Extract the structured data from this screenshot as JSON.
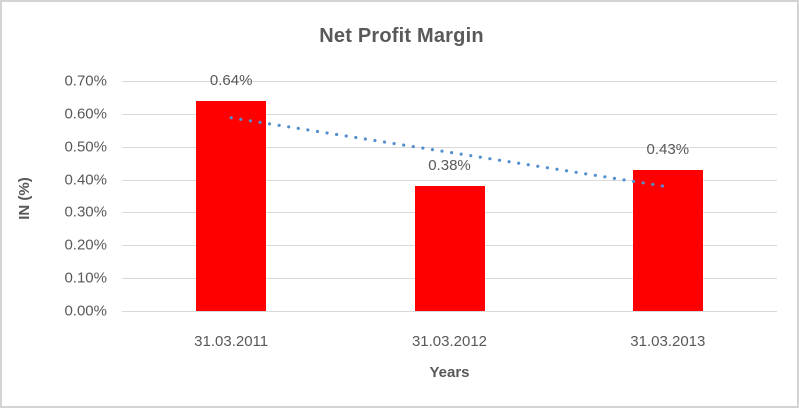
{
  "chart_data": {
    "type": "bar",
    "title": "Net Profit Margin",
    "xlabel": "Years",
    "ylabel": "IN (%)",
    "categories": [
      "31.03.2011",
      "31.03.2012",
      "31.03.2013"
    ],
    "values": [
      0.64,
      0.38,
      0.43
    ],
    "data_labels": [
      "0.64%",
      "0.38%",
      "0.43%"
    ],
    "y_ticks": [
      "0.70%",
      "0.60%",
      "0.50%",
      "0.40%",
      "0.30%",
      "0.20%",
      "0.10%",
      "0.00%"
    ],
    "ylim": [
      0,
      0.7
    ],
    "grid": true,
    "legend": "none",
    "trendline": {
      "type": "linear",
      "style": "dotted",
      "start_value": 0.588,
      "end_value": 0.378
    }
  },
  "colors": {
    "bar": "#ff0000",
    "trendline": "#5390cd",
    "gridline": "#d9d9d9",
    "text": "#595959",
    "border": "#d4d4d4",
    "background": "#ffffff"
  }
}
